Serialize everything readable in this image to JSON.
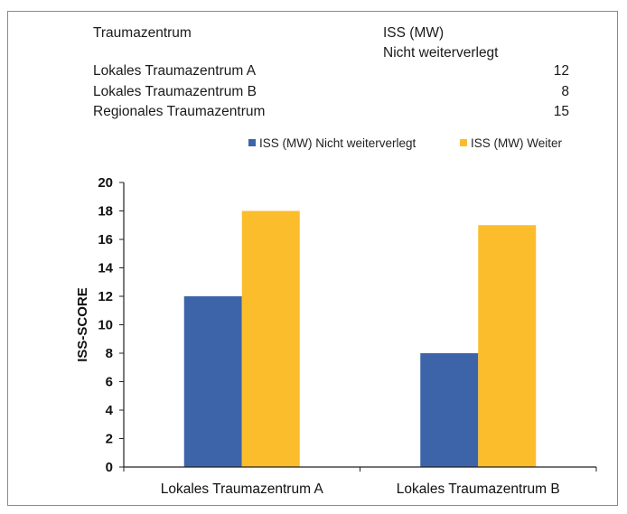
{
  "table": {
    "header_col1": "Traumazentrum",
    "header_col2_line1": "ISS (MW)",
    "header_col2_line2": "Nicht weiterverlegt",
    "rows": [
      {
        "name": "Lokales Traumazentrum A",
        "value": "12"
      },
      {
        "name": "Lokales Traumazentrum B",
        "value": "8"
      },
      {
        "name": "Regionales Traumazentrum",
        "value": "15"
      }
    ]
  },
  "chart_data": {
    "type": "bar",
    "categories": [
      "Lokales Traumazentrum A",
      "Lokales Traumazentrum B"
    ],
    "series": [
      {
        "name": "ISS (MW) Nicht weiterverlegt",
        "values": [
          12,
          8
        ],
        "color": "#3d64a8"
      },
      {
        "name": "ISS (MW) Weiter",
        "values": [
          18,
          17
        ],
        "color": "#fbbd2c"
      }
    ],
    "xlabel": "",
    "ylabel": "ISS-SCORE",
    "ylim": [
      0,
      20
    ],
    "yticks": [
      0,
      2,
      4,
      6,
      8,
      10,
      12,
      14,
      16,
      18,
      20
    ],
    "grid": false,
    "legend": "top"
  }
}
